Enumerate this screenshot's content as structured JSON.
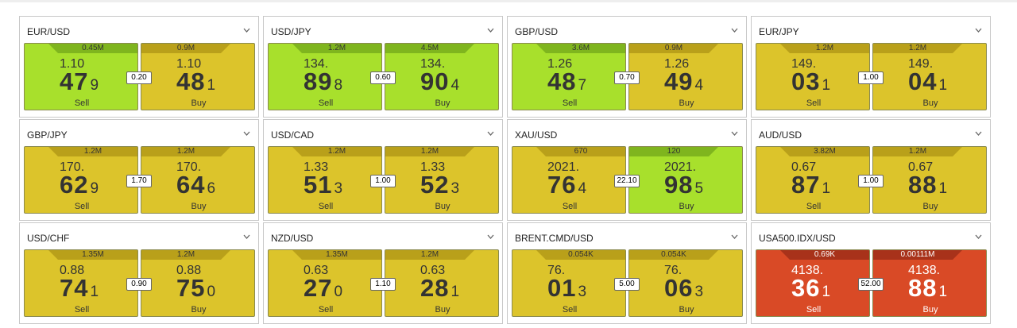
{
  "cards": [
    {
      "pair": "EUR/USD",
      "spread": "0.20",
      "sell": {
        "volume": "0.45M",
        "handle": "1.10",
        "pips": "47",
        "fraction": "9",
        "label": "Sell",
        "color": "#a8e02c",
        "tab_color": "#7fb51e",
        "text_color": "#333333"
      },
      "buy": {
        "volume": "0.9M",
        "handle": "1.10",
        "pips": "48",
        "fraction": "1",
        "label": "Buy",
        "color": "#dcc42b",
        "tab_color": "#b9a01a",
        "text_color": "#333333"
      }
    },
    {
      "pair": "USD/JPY",
      "spread": "0.60",
      "sell": {
        "volume": "1.2M",
        "handle": "134.",
        "pips": "89",
        "fraction": "8",
        "label": "Sell",
        "color": "#a8e02c",
        "tab_color": "#7fb51e",
        "text_color": "#333333"
      },
      "buy": {
        "volume": "4.5M",
        "handle": "134.",
        "pips": "90",
        "fraction": "4",
        "label": "Buy",
        "color": "#a8e02c",
        "tab_color": "#7fb51e",
        "text_color": "#333333"
      }
    },
    {
      "pair": "GBP/USD",
      "spread": "0.70",
      "sell": {
        "volume": "3.6M",
        "handle": "1.26",
        "pips": "48",
        "fraction": "7",
        "label": "Sell",
        "color": "#a8e02c",
        "tab_color": "#7fb51e",
        "text_color": "#333333"
      },
      "buy": {
        "volume": "0.9M",
        "handle": "1.26",
        "pips": "49",
        "fraction": "4",
        "label": "Buy",
        "color": "#dcc42b",
        "tab_color": "#b9a01a",
        "text_color": "#333333"
      }
    },
    {
      "pair": "EUR/JPY",
      "spread": "1.00",
      "sell": {
        "volume": "1.2M",
        "handle": "149.",
        "pips": "03",
        "fraction": "1",
        "label": "Sell",
        "color": "#dcc42b",
        "tab_color": "#b9a01a",
        "text_color": "#333333"
      },
      "buy": {
        "volume": "1.2M",
        "handle": "149.",
        "pips": "04",
        "fraction": "1",
        "label": "Buy",
        "color": "#dcc42b",
        "tab_color": "#b9a01a",
        "text_color": "#333333"
      }
    },
    {
      "pair": "GBP/JPY",
      "spread": "1.70",
      "sell": {
        "volume": "1.2M",
        "handle": "170.",
        "pips": "62",
        "fraction": "9",
        "label": "Sell",
        "color": "#dcc42b",
        "tab_color": "#b9a01a",
        "text_color": "#333333"
      },
      "buy": {
        "volume": "1.2M",
        "handle": "170.",
        "pips": "64",
        "fraction": "6",
        "label": "Buy",
        "color": "#dcc42b",
        "tab_color": "#b9a01a",
        "text_color": "#333333"
      }
    },
    {
      "pair": "USD/CAD",
      "spread": "1.00",
      "sell": {
        "volume": "1.2M",
        "handle": "1.33",
        "pips": "51",
        "fraction": "3",
        "label": "Sell",
        "color": "#dcc42b",
        "tab_color": "#b9a01a",
        "text_color": "#333333"
      },
      "buy": {
        "volume": "1.2M",
        "handle": "1.33",
        "pips": "52",
        "fraction": "3",
        "label": "Buy",
        "color": "#dcc42b",
        "tab_color": "#b9a01a",
        "text_color": "#333333"
      }
    },
    {
      "pair": "XAU/USD",
      "spread": "22.10",
      "sell": {
        "volume": "670",
        "handle": "2021.",
        "pips": "76",
        "fraction": "4",
        "label": "Sell",
        "color": "#dcc42b",
        "tab_color": "#b9a01a",
        "text_color": "#333333"
      },
      "buy": {
        "volume": "120",
        "handle": "2021.",
        "pips": "98",
        "fraction": "5",
        "label": "Buy",
        "color": "#a8e02c",
        "tab_color": "#7fb51e",
        "text_color": "#333333"
      }
    },
    {
      "pair": "AUD/USD",
      "spread": "1.00",
      "sell": {
        "volume": "3.82M",
        "handle": "0.67",
        "pips": "87",
        "fraction": "1",
        "label": "Sell",
        "color": "#dcc42b",
        "tab_color": "#b9a01a",
        "text_color": "#333333"
      },
      "buy": {
        "volume": "1.2M",
        "handle": "0.67",
        "pips": "88",
        "fraction": "1",
        "label": "Buy",
        "color": "#dcc42b",
        "tab_color": "#b9a01a",
        "text_color": "#333333"
      }
    },
    {
      "pair": "USD/CHF",
      "spread": "0.90",
      "sell": {
        "volume": "1.35M",
        "handle": "0.88",
        "pips": "74",
        "fraction": "1",
        "label": "Sell",
        "color": "#dcc42b",
        "tab_color": "#b9a01a",
        "text_color": "#333333"
      },
      "buy": {
        "volume": "1.2M",
        "handle": "0.88",
        "pips": "75",
        "fraction": "0",
        "label": "Buy",
        "color": "#dcc42b",
        "tab_color": "#b9a01a",
        "text_color": "#333333"
      }
    },
    {
      "pair": "NZD/USD",
      "spread": "1.10",
      "sell": {
        "volume": "1.35M",
        "handle": "0.63",
        "pips": "27",
        "fraction": "0",
        "label": "Sell",
        "color": "#dcc42b",
        "tab_color": "#b9a01a",
        "text_color": "#333333"
      },
      "buy": {
        "volume": "1.2M",
        "handle": "0.63",
        "pips": "28",
        "fraction": "1",
        "label": "Buy",
        "color": "#dcc42b",
        "tab_color": "#b9a01a",
        "text_color": "#333333"
      }
    },
    {
      "pair": "BRENT.CMD/USD",
      "spread": "5.00",
      "sell": {
        "volume": "0.054K",
        "handle": "76.",
        "pips": "01",
        "fraction": "3",
        "label": "Sell",
        "color": "#dcc42b",
        "tab_color": "#b9a01a",
        "text_color": "#333333"
      },
      "buy": {
        "volume": "0.054K",
        "handle": "76.",
        "pips": "06",
        "fraction": "3",
        "label": "Buy",
        "color": "#dcc42b",
        "tab_color": "#b9a01a",
        "text_color": "#333333"
      }
    },
    {
      "pair": "USA500.IDX/USD",
      "spread": "52.00",
      "sell": {
        "volume": "0.69K",
        "handle": "4138.",
        "pips": "36",
        "fraction": "1",
        "label": "Sell",
        "color": "#d94a26",
        "tab_color": "#a8321a",
        "text_color": "#ffffff"
      },
      "buy": {
        "volume": "0.00111M",
        "handle": "4138.",
        "pips": "88",
        "fraction": "1",
        "label": "Buy",
        "color": "#d94a26",
        "tab_color": "#a8321a",
        "text_color": "#ffffff"
      }
    }
  ]
}
